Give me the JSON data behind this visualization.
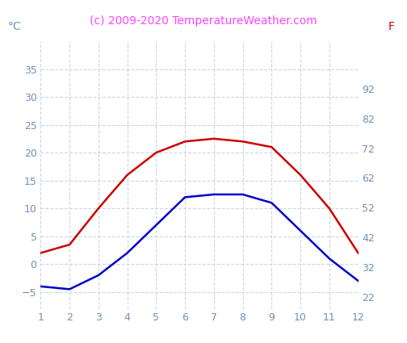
{
  "x": [
    1,
    2,
    3,
    4,
    5,
    6,
    7,
    8,
    9,
    10,
    11,
    12
  ],
  "red_line": [
    2,
    3.5,
    10,
    16,
    20,
    22,
    22.5,
    22,
    21,
    16,
    10,
    2
  ],
  "blue_line": [
    -4,
    -4.5,
    -2,
    2,
    7,
    12,
    12.5,
    12.5,
    11,
    6,
    1,
    -3
  ],
  "red_color": "#cc0000",
  "blue_color": "#0000cc",
  "title": "(c) 2009-2020 TemperatureWeather.com",
  "title_color": "#ff44ff",
  "ylabel_left": "°C",
  "ylabel_right": "F",
  "ylim_left": [
    -8,
    40
  ],
  "ylim_right": [
    18,
    108
  ],
  "yticks_left": [
    -5,
    0,
    5,
    10,
    15,
    20,
    25,
    30,
    35
  ],
  "yticks_right": [
    22,
    32,
    42,
    52,
    62,
    72,
    82,
    92
  ],
  "xticks": [
    1,
    2,
    3,
    4,
    5,
    6,
    7,
    8,
    9,
    10,
    11,
    12
  ],
  "tick_color": "#7090b0",
  "grid_color": "#c8d8e8",
  "bg_color": "#ffffff",
  "line_width": 1.8,
  "title_fontsize": 10,
  "axis_label_fontsize": 10,
  "tick_fontsize": 9
}
